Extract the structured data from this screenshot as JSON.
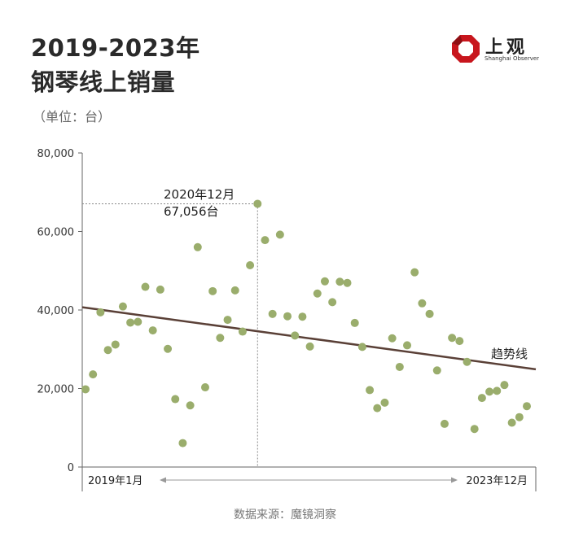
{
  "header": {
    "title_line1": "2019-2023年",
    "title_line2": "钢琴线上销量",
    "unit": "（单位：台）"
  },
  "logo": {
    "name": "上观",
    "subtitle": "Shanghai Observer",
    "colors": {
      "red": "#c8161d"
    }
  },
  "source": "数据来源：魔镜洞察",
  "chart_data": {
    "type": "scatter",
    "title": "2019-2023年钢琴线上销量",
    "ylabel": "（单位：台）",
    "ylim": [
      0,
      80000
    ],
    "yticks": [
      0,
      20000,
      40000,
      60000,
      80000
    ],
    "ytick_labels": [
      "0",
      "20,000",
      "40,000",
      "60,000",
      "80,000"
    ],
    "x_start_label": "2019年1月",
    "x_end_label": "2023年12月",
    "series": [
      {
        "values": [
          19800,
          23600,
          39400,
          29800,
          31200,
          40900,
          36800,
          37000,
          45900,
          34800,
          45200,
          30100,
          17300,
          6100,
          15700,
          56000,
          20300,
          44800,
          32900,
          37500,
          45000,
          34500,
          51400,
          67056,
          57800,
          39000,
          59200,
          38400,
          33500,
          38300,
          30700,
          44200,
          47300,
          42000,
          47200,
          46900,
          36700,
          30600,
          19600,
          15000,
          16400,
          32800,
          25500,
          31000,
          49600,
          41700,
          39000,
          24600,
          11000,
          32900,
          32100,
          26800,
          9700,
          17600,
          19200,
          19400,
          20900,
          11300,
          12700,
          15500
        ],
        "color": "#9aad6c"
      }
    ],
    "trend": {
      "label": "趋势线",
      "start": 40700,
      "end": 24900,
      "color": "#5a4037"
    },
    "annotation": {
      "index": 23,
      "line1": "2020年12月",
      "line2": "67,056台"
    },
    "colors": {
      "axis": "#666666",
      "guide": "#8a8a8a"
    }
  }
}
